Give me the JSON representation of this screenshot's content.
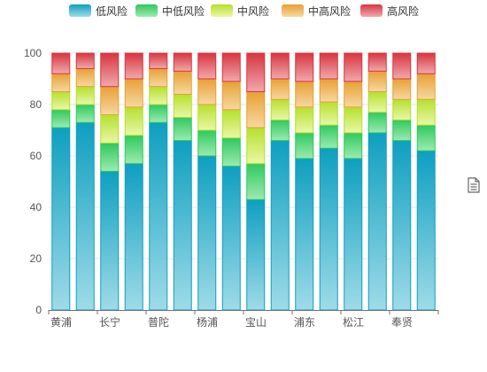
{
  "chart_data": {
    "type": "bar",
    "stacked": true,
    "categories": [
      "黄浦",
      "",
      "长宁",
      "",
      "普陀",
      "",
      "杨浦",
      "",
      "宝山",
      "",
      "浦东",
      "",
      "松江",
      "",
      "奉贤",
      ""
    ],
    "series": [
      {
        "name": "低风险",
        "color_top": "#0e9fc0",
        "color_bottom": "#9fdbe8",
        "values": [
          71,
          73,
          54,
          57,
          73,
          66,
          60,
          56,
          43,
          66,
          59,
          63,
          59,
          69,
          66,
          62
        ]
      },
      {
        "name": "中低风险",
        "color_top": "#2fc95e",
        "color_bottom": "#9deab0",
        "values": [
          7,
          7,
          11,
          11,
          7,
          9,
          10,
          11,
          14,
          8,
          10,
          9,
          10,
          8,
          8,
          10
        ]
      },
      {
        "name": "中风险",
        "color_top": "#b5e02c",
        "color_bottom": "#eaf7a8",
        "values": [
          7,
          7,
          11,
          11,
          7,
          9,
          10,
          11,
          14,
          8,
          10,
          9,
          10,
          8,
          8,
          10
        ]
      },
      {
        "name": "中高风险",
        "color_top": "#e8a034",
        "color_bottom": "#f6d8a2",
        "values": [
          7,
          7,
          11,
          11,
          7,
          9,
          10,
          11,
          14,
          8,
          10,
          9,
          10,
          8,
          8,
          10
        ]
      },
      {
        "name": "高风险",
        "color_top": "#d8353f",
        "color_bottom": "#f0a9ad",
        "values": [
          8,
          6,
          13,
          10,
          6,
          7,
          10,
          11,
          15,
          10,
          11,
          10,
          11,
          7,
          10,
          8
        ]
      }
    ],
    "ylim": [
      0,
      100
    ],
    "yticks": [
      0,
      20,
      40,
      60,
      80,
      100
    ],
    "legend_position": "top",
    "grid": true
  }
}
